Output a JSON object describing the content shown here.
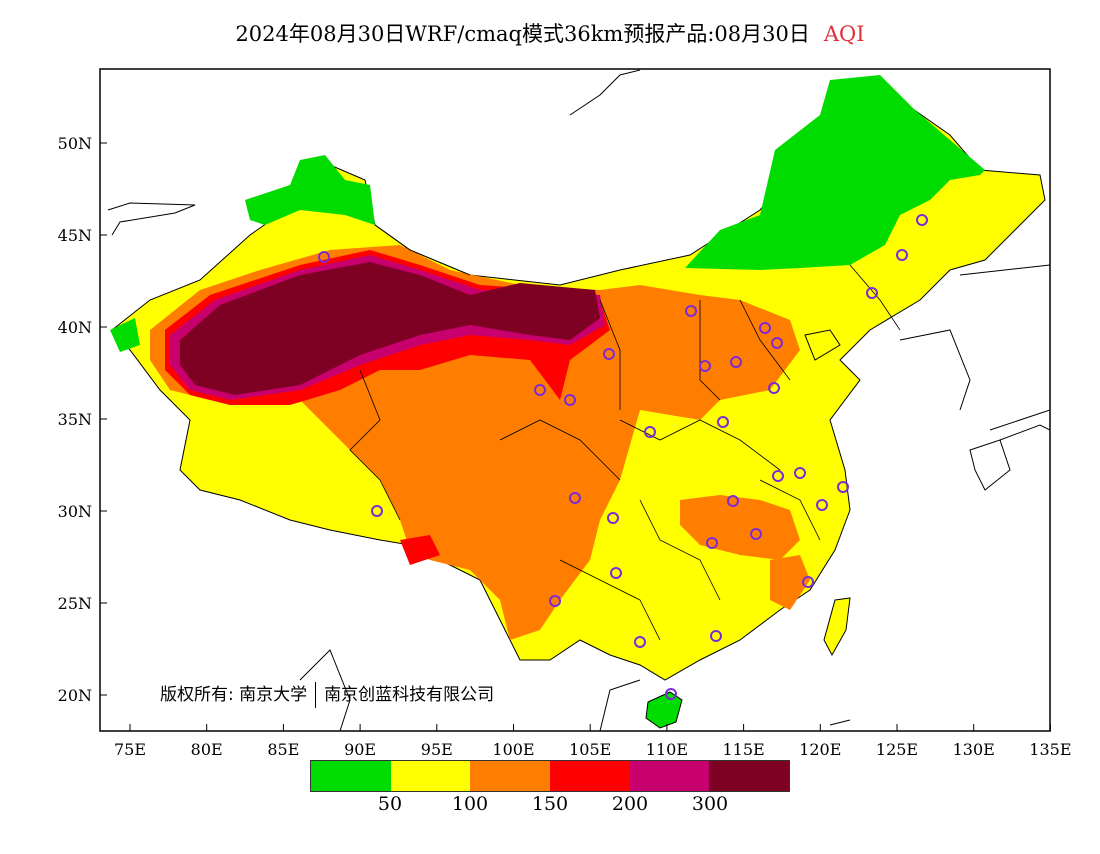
{
  "title": {
    "main": "2024年08月30日WRF/cmaq模式36km预报产品:08月30日",
    "variable": "AQI",
    "variable_color": "#e0303a"
  },
  "map": {
    "lon_ticks": [
      "75E",
      "80E",
      "85E",
      "90E",
      "95E",
      "100E",
      "105E",
      "110E",
      "115E",
      "120E",
      "125E",
      "130E",
      "135E"
    ],
    "lat_ticks": [
      "50N",
      "45N",
      "40N",
      "35N",
      "30N",
      "25N",
      "20N"
    ],
    "copyright": {
      "label": "版权所有:",
      "org1": "南京大学",
      "org2": "南京创蓝科技有限公司"
    }
  },
  "legend": {
    "colors": [
      "#00dc00",
      "#ffff00",
      "#ff7e00",
      "#ff0000",
      "#c8006e",
      "#7e0023"
    ],
    "labels": [
      "50",
      "100",
      "150",
      "200",
      "300"
    ]
  },
  "stations_count_note": "",
  "colors": {
    "good": "#00dc00",
    "moderate": "#ffff00",
    "usg": "#ff7e00",
    "unhealthy": "#ff0000",
    "very_unhealthy": "#c8006e",
    "hazardous": "#7e0023",
    "station": "#7b2bd8"
  }
}
